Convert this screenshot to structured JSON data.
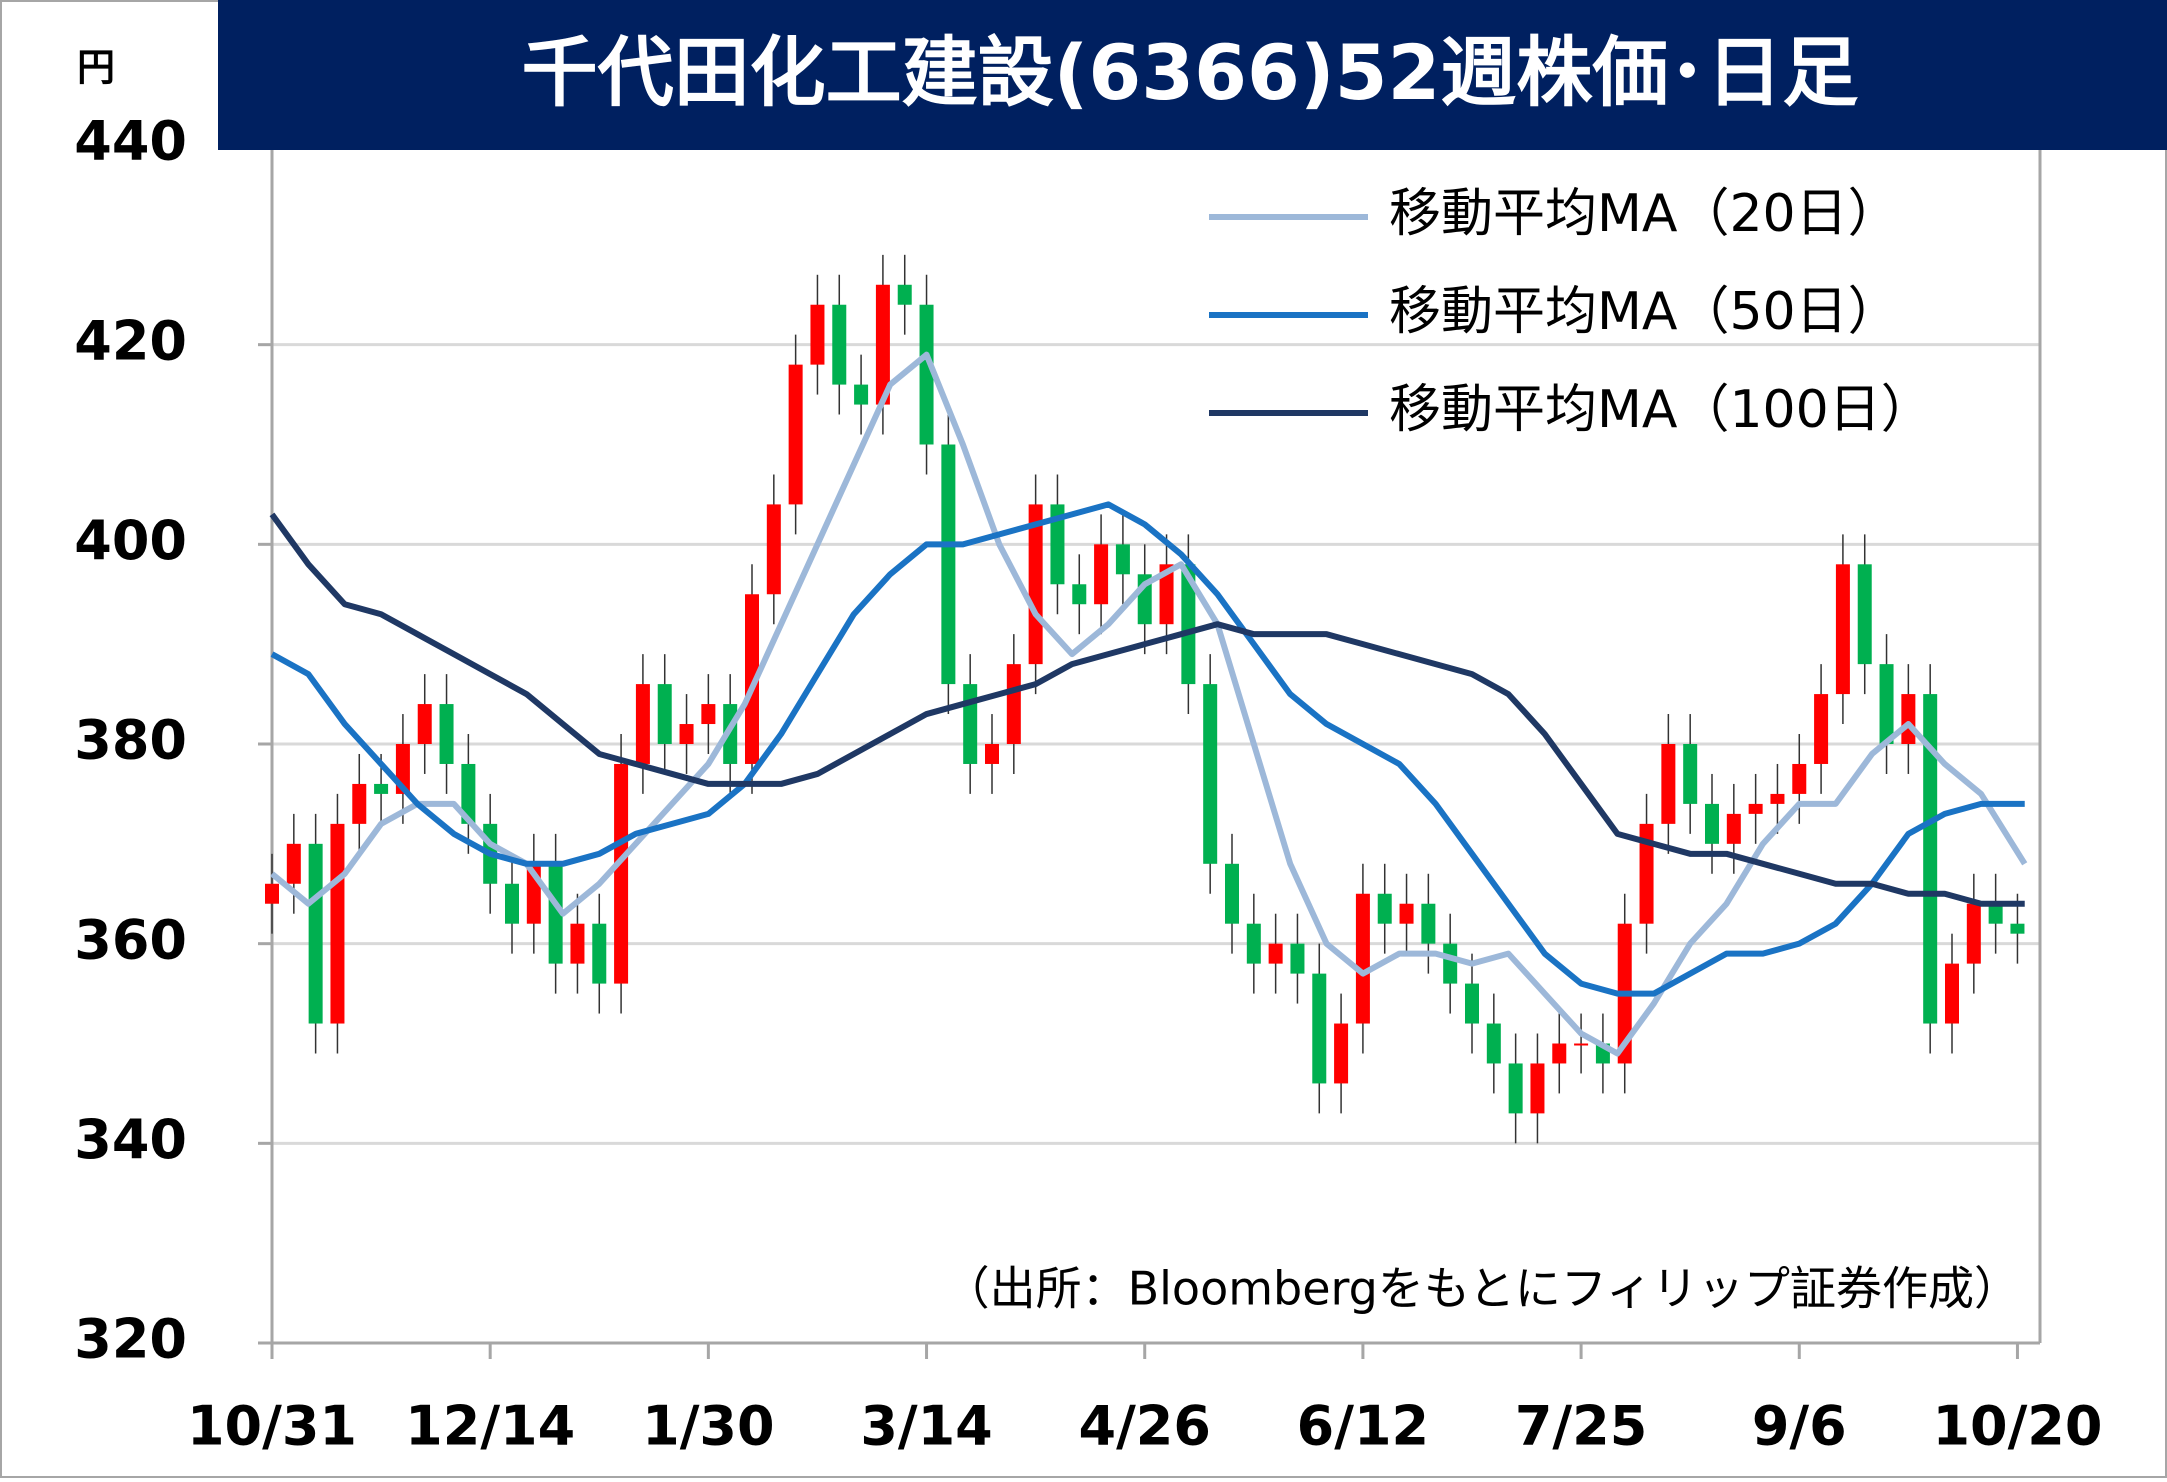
{
  "chart_data": {
    "type": "candlestick",
    "title": "千代田化工建設(6366)52週株価･日足",
    "unit_label": "円",
    "note": "（出所：Bloombergをもとにフィリップ証券作成）",
    "up_color": "#ff0000",
    "down_color": "#00b050",
    "x": [
      0,
      3,
      6,
      9,
      12,
      15,
      18,
      21,
      24,
      27,
      30,
      33,
      36,
      39,
      42,
      45,
      48,
      51,
      54,
      57,
      60,
      63,
      66,
      69,
      72,
      75,
      78,
      81,
      84,
      87,
      90,
      93,
      96,
      99,
      102,
      105,
      108,
      111,
      114,
      117,
      120,
      123,
      126,
      129,
      132,
      135,
      138,
      141,
      144,
      147,
      150,
      153,
      156,
      159,
      162,
      165,
      168,
      171,
      174,
      177,
      180,
      183,
      186,
      189,
      192,
      195,
      198,
      201,
      204,
      207,
      210,
      213,
      216,
      219,
      222,
      225,
      228,
      231,
      234,
      237,
      240
    ],
    "open": [
      364,
      366,
      370,
      352,
      372,
      376,
      375,
      380,
      384,
      378,
      372,
      366,
      362,
      368,
      358,
      362,
      356,
      378,
      386,
      380,
      382,
      384,
      378,
      395,
      404,
      418,
      424,
      416,
      414,
      426,
      424,
      410,
      386,
      378,
      380,
      388,
      404,
      396,
      394,
      400,
      397,
      392,
      398,
      386,
      368,
      362,
      358,
      360,
      357,
      346,
      352,
      365,
      362,
      364,
      360,
      356,
      352,
      348,
      343,
      348,
      350,
      350,
      348,
      362,
      372,
      380,
      374,
      370,
      373,
      374,
      375,
      378,
      385,
      398,
      388,
      380,
      385,
      352,
      358,
      364,
      362
    ],
    "high": [
      369,
      373,
      373,
      375,
      379,
      379,
      383,
      387,
      387,
      381,
      375,
      369,
      371,
      371,
      365,
      365,
      381,
      389,
      389,
      385,
      387,
      387,
      398,
      407,
      421,
      427,
      427,
      419,
      429,
      429,
      427,
      413,
      389,
      383,
      391,
      407,
      407,
      399,
      403,
      403,
      400,
      401,
      401,
      389,
      371,
      365,
      363,
      363,
      360,
      355,
      368,
      368,
      367,
      367,
      363,
      359,
      355,
      351,
      351,
      353,
      353,
      353,
      365,
      375,
      383,
      383,
      377,
      376,
      377,
      378,
      381,
      388,
      401,
      401,
      391,
      388,
      388,
      361,
      367,
      367,
      365
    ],
    "low": [
      361,
      363,
      349,
      349,
      369,
      372,
      372,
      377,
      375,
      369,
      363,
      359,
      359,
      355,
      355,
      353,
      353,
      375,
      377,
      377,
      379,
      375,
      375,
      392,
      401,
      415,
      413,
      411,
      411,
      421,
      407,
      383,
      375,
      375,
      377,
      385,
      393,
      391,
      391,
      394,
      389,
      389,
      383,
      365,
      359,
      355,
      355,
      354,
      343,
      343,
      349,
      359,
      359,
      357,
      353,
      349,
      345,
      340,
      340,
      345,
      347,
      345,
      345,
      359,
      369,
      371,
      367,
      367,
      370,
      371,
      372,
      375,
      382,
      385,
      377,
      377,
      349,
      349,
      355,
      359,
      358
    ],
    "close": [
      366,
      370,
      352,
      372,
      376,
      375,
      380,
      384,
      378,
      372,
      366,
      362,
      368,
      358,
      362,
      356,
      378,
      386,
      380,
      382,
      384,
      378,
      395,
      404,
      418,
      424,
      416,
      414,
      426,
      424,
      410,
      386,
      378,
      380,
      388,
      404,
      396,
      394,
      400,
      397,
      392,
      398,
      386,
      368,
      362,
      358,
      360,
      357,
      346,
      352,
      365,
      362,
      364,
      360,
      356,
      352,
      348,
      343,
      348,
      350,
      350,
      348,
      362,
      372,
      380,
      374,
      370,
      373,
      374,
      375,
      378,
      385,
      398,
      388,
      380,
      385,
      352,
      358,
      364,
      362,
      361
    ],
    "series": [
      {
        "name": "移動平均MA（20日）",
        "color": "#9db8d9",
        "x": [
          0,
          5,
          10,
          15,
          20,
          25,
          30,
          35,
          40,
          45,
          50,
          55,
          60,
          65,
          70,
          75,
          80,
          85,
          90,
          95,
          100,
          105,
          110,
          115,
          120,
          125,
          130,
          135,
          140,
          145,
          150,
          155,
          160,
          165,
          170,
          175,
          180,
          185,
          190,
          195,
          200,
          205,
          210,
          215,
          220,
          225,
          230,
          235,
          241
        ],
        "values": [
          367,
          364,
          367,
          372,
          374,
          374,
          370,
          368,
          363,
          366,
          370,
          374,
          378,
          384,
          392,
          400,
          408,
          416,
          419,
          410,
          400,
          393,
          389,
          392,
          396,
          398,
          392,
          380,
          368,
          360,
          357,
          359,
          359,
          358,
          359,
          355,
          351,
          349,
          354,
          360,
          364,
          370,
          374,
          374,
          379,
          382,
          378,
          375,
          368
        ]
      },
      {
        "name": "移動平均MA（50日）",
        "color": "#1a73c4",
        "x": [
          0,
          5,
          10,
          15,
          20,
          25,
          30,
          35,
          40,
          45,
          50,
          55,
          60,
          65,
          70,
          75,
          80,
          85,
          90,
          95,
          100,
          105,
          110,
          115,
          120,
          125,
          130,
          135,
          140,
          145,
          150,
          155,
          160,
          165,
          170,
          175,
          180,
          185,
          190,
          195,
          200,
          205,
          210,
          215,
          220,
          225,
          230,
          235,
          241
        ],
        "values": [
          389,
          387,
          382,
          378,
          374,
          371,
          369,
          368,
          368,
          369,
          371,
          372,
          373,
          376,
          381,
          387,
          393,
          397,
          400,
          400,
          401,
          402,
          403,
          404,
          402,
          399,
          395,
          390,
          385,
          382,
          380,
          378,
          374,
          369,
          364,
          359,
          356,
          355,
          355,
          357,
          359,
          359,
          360,
          362,
          366,
          371,
          373,
          374,
          374
        ]
      },
      {
        "name": "移動平均MA（100日）",
        "color": "#1f3864",
        "x": [
          0,
          5,
          10,
          15,
          20,
          25,
          30,
          35,
          40,
          45,
          50,
          55,
          60,
          65,
          70,
          75,
          80,
          85,
          90,
          95,
          100,
          105,
          110,
          115,
          120,
          125,
          130,
          135,
          140,
          145,
          150,
          155,
          160,
          165,
          170,
          175,
          180,
          185,
          190,
          195,
          200,
          205,
          210,
          215,
          220,
          225,
          230,
          235,
          241
        ],
        "values": [
          403,
          398,
          394,
          393,
          391,
          389,
          387,
          385,
          382,
          379,
          378,
          377,
          376,
          376,
          376,
          377,
          379,
          381,
          383,
          384,
          385,
          386,
          388,
          389,
          390,
          391,
          392,
          391,
          391,
          391,
          390,
          389,
          388,
          387,
          385,
          381,
          376,
          371,
          370,
          369,
          369,
          368,
          367,
          366,
          366,
          365,
          365,
          364,
          364
        ]
      }
    ],
    "xlim": [
      0,
      242
    ],
    "xticks": [
      {
        "value": 0,
        "label": "10/31"
      },
      {
        "value": 30,
        "label": "12/14"
      },
      {
        "value": 60,
        "label": "1/30"
      },
      {
        "value": 90,
        "label": "3/14"
      },
      {
        "value": 120,
        "label": "4/26"
      },
      {
        "value": 150,
        "label": "6/12"
      },
      {
        "value": 180,
        "label": "7/25"
      },
      {
        "value": 210,
        "label": "9/6"
      },
      {
        "value": 240,
        "label": "10/20"
      }
    ],
    "ylim": [
      320,
      440
    ],
    "yticks": [
      320,
      340,
      360,
      380,
      400,
      420,
      440
    ],
    "grid": true,
    "legend": "upper right"
  }
}
